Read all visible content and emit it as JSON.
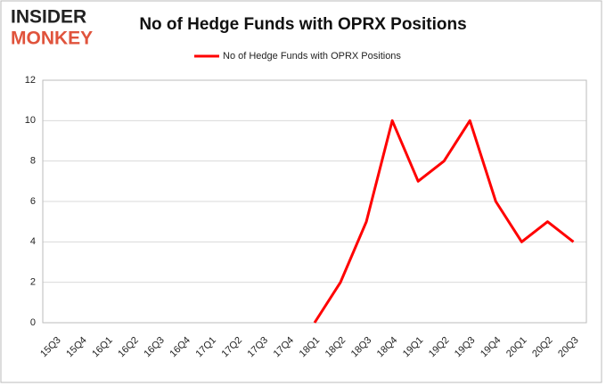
{
  "logo": [
    "INSIDER",
    "MONKEY"
  ],
  "chart_data": {
    "type": "line",
    "title": "No of Hedge Funds with OPRX Positions",
    "categories": [
      "15Q3",
      "15Q4",
      "16Q1",
      "16Q2",
      "16Q3",
      "16Q4",
      "17Q1",
      "17Q2",
      "17Q3",
      "17Q4",
      "18Q1",
      "18Q2",
      "18Q3",
      "18Q4",
      "19Q1",
      "19Q2",
      "19Q3",
      "19Q4",
      "20Q1",
      "20Q2",
      "20Q3"
    ],
    "series": [
      {
        "name": "No of Hedge Funds with OPRX Positions",
        "color": "#ff0000",
        "values": [
          null,
          null,
          null,
          null,
          null,
          null,
          null,
          null,
          null,
          null,
          0,
          2,
          5,
          10,
          7,
          8,
          10,
          6,
          4,
          5,
          4
        ]
      }
    ],
    "ylim": [
      0,
      12
    ],
    "yticks": [
      0,
      2,
      4,
      6,
      8,
      10,
      12
    ],
    "grid": true,
    "legend": "top"
  }
}
